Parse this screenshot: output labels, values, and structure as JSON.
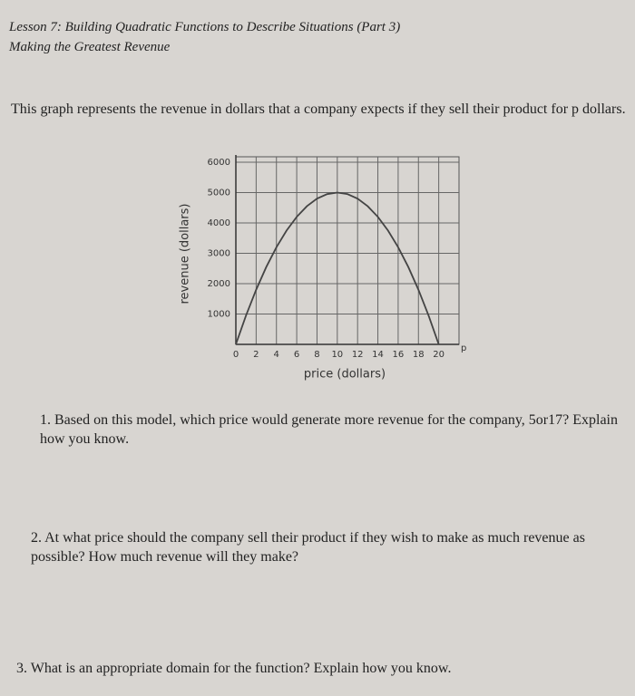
{
  "header": {
    "title": "Lesson 7: Building Quadratic Functions to Describe Situations (Part 3)",
    "subtitle": "Making the Greatest Revenue"
  },
  "intro": "This graph represents the revenue in dollars that a company expects if they sell their product for p dollars.",
  "chart_data": {
    "type": "line",
    "x_label": "price (dollars)",
    "y_label": "revenue (dollars)",
    "x_axis_letter": "p",
    "x": [
      0,
      1,
      2,
      3,
      4,
      5,
      6,
      7,
      8,
      9,
      10,
      11,
      12,
      13,
      14,
      15,
      16,
      17,
      18,
      19,
      20
    ],
    "series": [
      {
        "color": "#444444",
        "values": [
          0,
          950,
          1800,
          2550,
          3200,
          3750,
          4200,
          4550,
          4800,
          4950,
          5000,
          4950,
          4800,
          4550,
          4200,
          3750,
          3200,
          2550,
          1800,
          950,
          0
        ]
      }
    ],
    "xlim": [
      0,
      22
    ],
    "ylim": [
      0,
      6000
    ],
    "xticks": [
      0,
      2,
      4,
      6,
      8,
      10,
      12,
      14,
      16,
      18,
      20
    ],
    "yticks": [
      1000,
      2000,
      3000,
      4000,
      5000,
      6000
    ],
    "grid": true
  },
  "questions": [
    "1. Based on this model, which price would generate more revenue for the company, 5or17? Explain how you know.",
    "2. At what price should the company sell their product if they wish to make as much revenue as possible? How much revenue will they make?",
    "3. What is an appropriate domain for the function? Explain how you know."
  ]
}
